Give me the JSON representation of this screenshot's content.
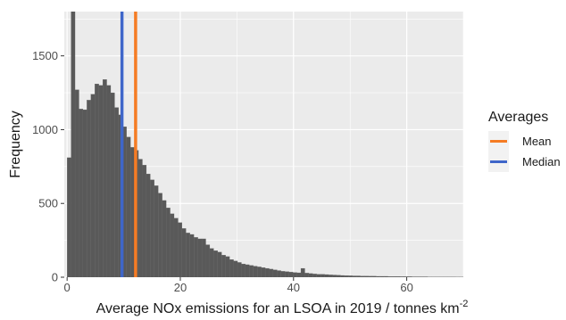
{
  "chart_data": {
    "type": "bar",
    "subtype": "histogram",
    "xlabel": "Average  NOx emissions for an LSOA in  2019 / tonnes  km",
    "xlabel_superscript": "-2",
    "ylabel": "Frequency",
    "xlim": [
      -0.5,
      70
    ],
    "ylim": [
      0,
      1800
    ],
    "x_ticks": [
      0,
      20,
      40,
      60
    ],
    "y_ticks": [
      0,
      500,
      1000,
      1500
    ],
    "grid": true,
    "bin_width": 0.7,
    "bin_start": 0,
    "bar_color": "#595959",
    "bin_values": [
      810,
      2500,
      1270,
      1140,
      1135,
      1200,
      1240,
      1310,
      1300,
      1340,
      1300,
      1250,
      1150,
      1100,
      1020,
      950,
      880,
      860,
      800,
      760,
      700,
      660,
      620,
      570,
      520,
      470,
      430,
      400,
      370,
      330,
      300,
      290,
      270,
      260,
      260,
      220,
      195,
      180,
      170,
      150,
      140,
      120,
      110,
      100,
      90,
      85,
      80,
      75,
      70,
      65,
      60,
      55,
      50,
      45,
      40,
      38,
      35,
      32,
      30,
      60,
      28,
      25,
      22,
      20,
      20,
      18,
      16,
      15,
      14,
      12,
      11,
      10,
      9,
      9,
      8,
      8,
      7,
      7,
      6,
      6,
      6,
      5,
      5,
      5,
      4,
      4,
      4,
      3,
      3,
      3,
      3,
      2,
      2,
      2,
      2,
      2,
      2,
      2,
      1,
      1
    ],
    "reference_lines": [
      {
        "name": "Mean",
        "x": 12.1,
        "color": "#f57c24"
      },
      {
        "name": "Median",
        "x": 9.7,
        "color": "#3f66c9"
      }
    ],
    "legend": {
      "title": "Averages",
      "placement": "right",
      "entries": [
        "Mean",
        "Median"
      ]
    }
  }
}
